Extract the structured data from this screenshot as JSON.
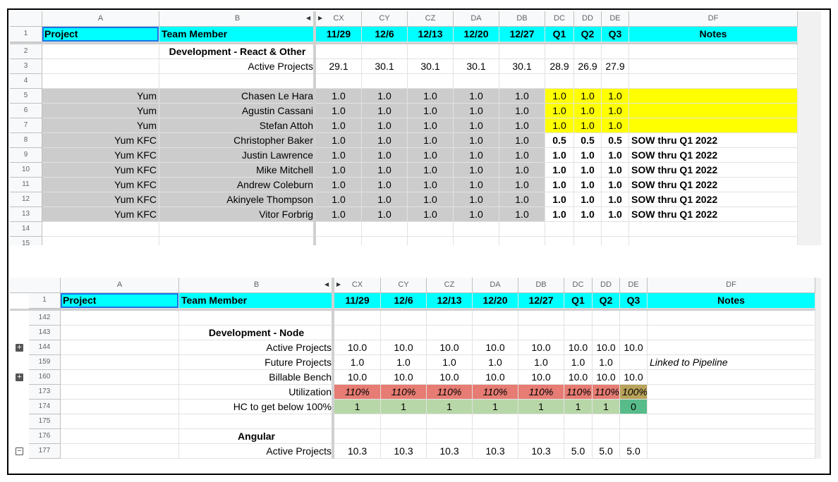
{
  "top": {
    "col_headers": [
      "A",
      "B",
      "CX",
      "CY",
      "CZ",
      "DA",
      "DB",
      "DC",
      "DD",
      "DE",
      "DF"
    ],
    "header_row": {
      "num": "1",
      "cells": [
        "Project",
        "Team Member",
        "11/29",
        "12/6",
        "12/13",
        "12/20",
        "12/27",
        "Q1",
        "Q2",
        "Q3",
        "Notes"
      ]
    },
    "rows": [
      {
        "num": "2",
        "cells": [
          "",
          "Development -  React & Other",
          "",
          "",
          "",
          "",
          "",
          "",
          "",
          "",
          ""
        ]
      },
      {
        "num": "3",
        "cells": [
          "",
          "Active Projects",
          "29.1",
          "30.1",
          "30.1",
          "30.1",
          "30.1",
          "28.9",
          "26.9",
          "27.9",
          ""
        ]
      },
      {
        "num": "4",
        "cells": [
          "",
          "",
          "",
          "",
          "",
          "",
          "",
          "",
          "",
          "",
          ""
        ]
      },
      {
        "num": "5",
        "cells": [
          "Yum",
          "Chasen Le Hara",
          "1.0",
          "1.0",
          "1.0",
          "1.0",
          "1.0",
          "1.0",
          "1.0",
          "1.0",
          ""
        ]
      },
      {
        "num": "6",
        "cells": [
          "Yum",
          "Agustin Cassani",
          "1.0",
          "1.0",
          "1.0",
          "1.0",
          "1.0",
          "1.0",
          "1.0",
          "1.0",
          ""
        ]
      },
      {
        "num": "7",
        "cells": [
          "Yum",
          "Stefan Attoh",
          "1.0",
          "1.0",
          "1.0",
          "1.0",
          "1.0",
          "1.0",
          "1.0",
          "1.0",
          ""
        ]
      },
      {
        "num": "8",
        "cells": [
          "Yum KFC",
          "Christopher Baker",
          "1.0",
          "1.0",
          "1.0",
          "1.0",
          "1.0",
          "0.5",
          "0.5",
          "0.5",
          "SOW thru Q1 2022"
        ]
      },
      {
        "num": "9",
        "cells": [
          "Yum KFC",
          "Justin Lawrence",
          "1.0",
          "1.0",
          "1.0",
          "1.0",
          "1.0",
          "1.0",
          "1.0",
          "1.0",
          "SOW thru Q1 2022"
        ]
      },
      {
        "num": "10",
        "cells": [
          "Yum KFC",
          "Mike Mitchell",
          "1.0",
          "1.0",
          "1.0",
          "1.0",
          "1.0",
          "1.0",
          "1.0",
          "1.0",
          "SOW thru Q1 2022"
        ]
      },
      {
        "num": "11",
        "cells": [
          "Yum KFC",
          "Andrew Coleburn",
          "1.0",
          "1.0",
          "1.0",
          "1.0",
          "1.0",
          "1.0",
          "1.0",
          "1.0",
          "SOW thru Q1 2022"
        ]
      },
      {
        "num": "12",
        "cells": [
          "Yum KFC",
          "Akinyele Thompson",
          "1.0",
          "1.0",
          "1.0",
          "1.0",
          "1.0",
          "1.0",
          "1.0",
          "1.0",
          "SOW thru Q1 2022"
        ]
      },
      {
        "num": "13",
        "cells": [
          "Yum KFC",
          "Vitor Forbrig",
          "1.0",
          "1.0",
          "1.0",
          "1.0",
          "1.0",
          "1.0",
          "1.0",
          "1.0",
          "SOW thru Q1 2022"
        ]
      },
      {
        "num": "14",
        "cells": [
          "",
          "",
          "",
          "",
          "",
          "",
          "",
          "",
          "",
          "",
          ""
        ]
      },
      {
        "num": "15",
        "cells": [
          "",
          "",
          "",
          "",
          "",
          "",
          "",
          "",
          "",
          "",
          ""
        ]
      }
    ]
  },
  "bottom": {
    "col_headers": [
      "A",
      "B",
      "CX",
      "CY",
      "CZ",
      "DA",
      "DB",
      "DC",
      "DD",
      "DE",
      "DF"
    ],
    "header_row": {
      "num": "1",
      "cells": [
        "Project",
        "Team Member",
        "11/29",
        "12/6",
        "12/13",
        "12/20",
        "12/27",
        "Q1",
        "Q2",
        "Q3",
        "Notes"
      ]
    },
    "rows": [
      {
        "num": "142",
        "cells": [
          "",
          "",
          "",
          "",
          "",
          "",
          "",
          "",
          "",
          "",
          ""
        ]
      },
      {
        "num": "143",
        "cells": [
          "",
          "Development - Node",
          "",
          "",
          "",
          "",
          "",
          "",
          "",
          "",
          ""
        ]
      },
      {
        "num": "144",
        "cells": [
          "",
          "Active Projects",
          "10.0",
          "10.0",
          "10.0",
          "10.0",
          "10.0",
          "10.0",
          "10.0",
          "10.0",
          ""
        ]
      },
      {
        "num": "159",
        "cells": [
          "",
          "Future Projects",
          "1.0",
          "1.0",
          "1.0",
          "1.0",
          "1.0",
          "1.0",
          "1.0",
          "",
          "Linked to Pipeline"
        ]
      },
      {
        "num": "160",
        "cells": [
          "",
          "Billable Bench",
          "10.0",
          "10.0",
          "10.0",
          "10.0",
          "10.0",
          "10.0",
          "10.0",
          "10.0",
          ""
        ]
      },
      {
        "num": "173",
        "cells": [
          "",
          "Utilization",
          "110%",
          "110%",
          "110%",
          "110%",
          "110%",
          "110%",
          "110%",
          "100%",
          ""
        ]
      },
      {
        "num": "174",
        "cells": [
          "",
          "HC to get below 100%",
          "1",
          "1",
          "1",
          "1",
          "1",
          "1",
          "1",
          "0",
          ""
        ]
      },
      {
        "num": "175",
        "cells": [
          "",
          "",
          "",
          "",
          "",
          "",
          "",
          "",
          "",
          "",
          ""
        ]
      },
      {
        "num": "176",
        "cells": [
          "",
          "Angular",
          "",
          "",
          "",
          "",
          "",
          "",
          "",
          "",
          ""
        ]
      },
      {
        "num": "177",
        "cells": [
          "",
          "Active Projects",
          "10.3",
          "10.3",
          "10.3",
          "10.3",
          "10.3",
          "5.0",
          "5.0",
          "5.0",
          ""
        ]
      }
    ]
  },
  "colors": {
    "header_fill": "#00ffff",
    "project_fill": "#cccccc",
    "highlight": "#ffff00",
    "over_util": "#e67c73",
    "at_util": "#b8a35a",
    "hc_fill": "#b7d7a8",
    "hc_zero": "#57bb8a"
  }
}
